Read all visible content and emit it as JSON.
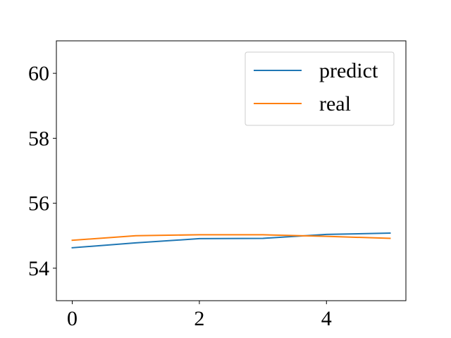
{
  "chart_data": {
    "type": "line",
    "title": "",
    "xlabel": "",
    "ylabel": "",
    "x": [
      0,
      1,
      2,
      3,
      4,
      5
    ],
    "xlim": [
      -0.25,
      5.25
    ],
    "ylim": [
      53.0,
      61.0
    ],
    "xticks": [
      "0",
      "2",
      "4"
    ],
    "yticks": [
      "54",
      "56",
      "58",
      "60"
    ],
    "grid": false,
    "legend_position": "top-right",
    "series": [
      {
        "name": "predict",
        "color": "#1f77b4",
        "values": [
          54.63,
          54.78,
          54.91,
          54.92,
          55.04,
          55.08
        ]
      },
      {
        "name": "real",
        "color": "#ff7f0e",
        "values": [
          54.86,
          55.0,
          55.03,
          55.03,
          54.98,
          54.92
        ]
      }
    ]
  }
}
